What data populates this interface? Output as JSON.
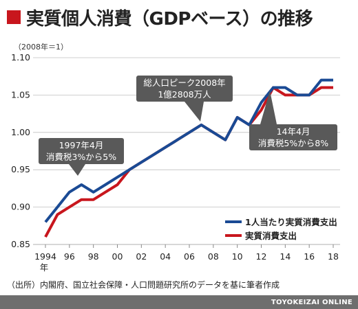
{
  "title": "実質個人消費（GDPベース）の推移",
  "unit_note": "（2008年＝1）",
  "source_note": "（出所）内閣府、国立社会保障・人口問題研究所のデータを基に筆者作成",
  "footer": "TOYOKEIZAI ONLINE",
  "colors": {
    "accent": "#c8161d",
    "series_per_capita": "#1a4a94",
    "series_total": "#c8161d",
    "callout_bg": "#595959",
    "grid": "#bfbfbf",
    "footer_bg": "#6e6e6e"
  },
  "chart_data": {
    "type": "line",
    "x": [
      1994,
      1995,
      1996,
      1997,
      1998,
      1999,
      2000,
      2001,
      2002,
      2003,
      2004,
      2005,
      2006,
      2007,
      2008,
      2009,
      2010,
      2011,
      2012,
      2013,
      2014,
      2015,
      2016,
      2017,
      2018
    ],
    "x_tick_values": [
      1994,
      1996,
      1998,
      2000,
      2002,
      2004,
      2006,
      2008,
      2010,
      2012,
      2014,
      2016,
      2018
    ],
    "x_tick_labels": [
      "1994",
      "96",
      "98",
      "00",
      "02",
      "04",
      "06",
      "08",
      "10",
      "12",
      "14",
      "16",
      "18"
    ],
    "x_first_sub": "年",
    "ylim": [
      0.85,
      1.1
    ],
    "y_ticks": [
      0.85,
      0.9,
      0.95,
      1.0,
      1.05,
      1.1
    ],
    "y_tick_labels": [
      "0.85",
      "0.90",
      "0.95",
      "1.00",
      "1.05",
      "1.10"
    ],
    "grid": "horizontal",
    "legend_position": "bottom-right",
    "series": [
      {
        "name": "1人当たり実質消費支出",
        "values": [
          0.88,
          0.9,
          0.92,
          0.93,
          0.92,
          0.93,
          0.94,
          0.95,
          0.96,
          0.97,
          0.98,
          0.99,
          1.0,
          1.01,
          1.0,
          0.99,
          1.02,
          1.01,
          1.04,
          1.06,
          1.06,
          1.05,
          1.05,
          1.07,
          1.07
        ]
      },
      {
        "name": "実質消費支出",
        "values": [
          0.86,
          0.89,
          0.9,
          0.91,
          0.91,
          0.92,
          0.93,
          0.95,
          0.96,
          0.97,
          0.98,
          0.99,
          1.0,
          1.01,
          1.0,
          0.99,
          1.02,
          1.01,
          1.03,
          1.06,
          1.05,
          1.05,
          1.05,
          1.06,
          1.06
        ]
      }
    ],
    "annotations": [
      {
        "lines": [
          "1997年4月",
          "消費税3%から5%"
        ]
      },
      {
        "lines": [
          "総人口ピーク2008年",
          "1億2808万人"
        ]
      },
      {
        "lines": [
          "14年4月",
          "消費税5%から8%"
        ]
      }
    ]
  }
}
